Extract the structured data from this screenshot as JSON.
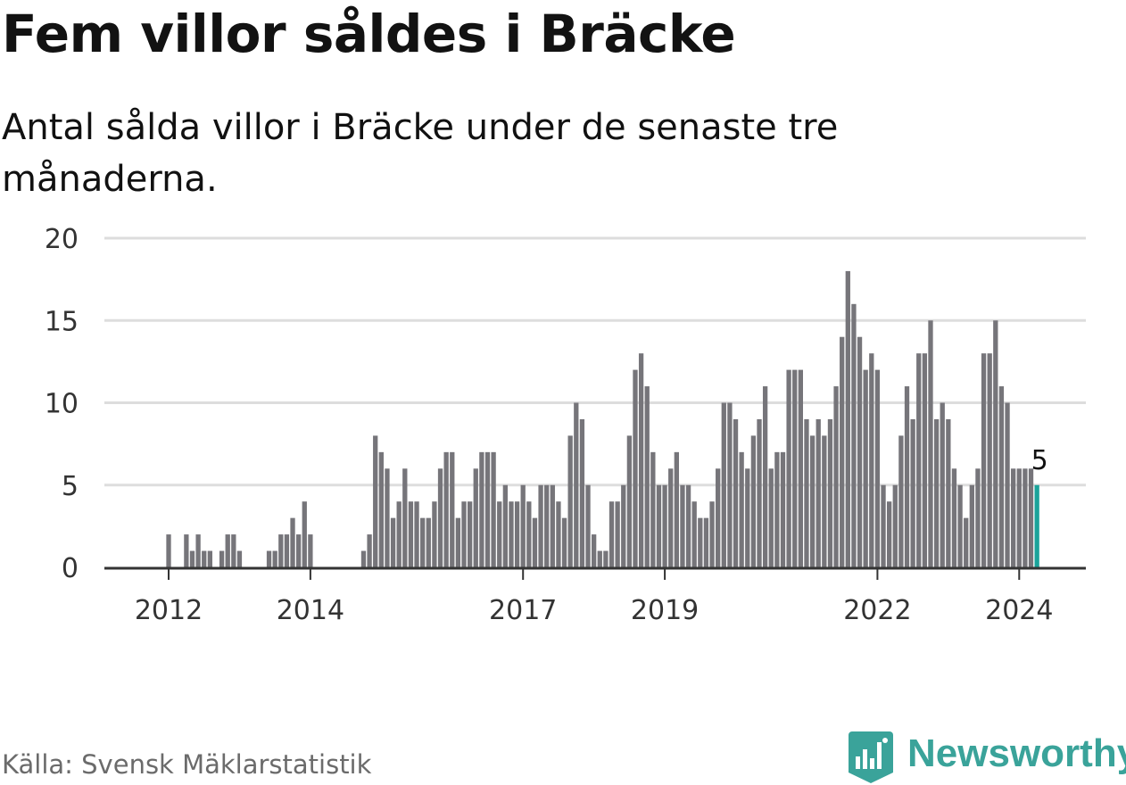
{
  "title": "Fem villor såldes i Bräcke",
  "subtitle": "Antal sålda villor i Bräcke under de senaste tre månaderna.",
  "source": "Källa: Svensk Mäklarstatistik",
  "brand": {
    "name": "Newsworthy",
    "icon": "newsworthy-logo-icon",
    "color": "#3aa39a"
  },
  "chart_data": {
    "type": "bar",
    "title": "Fem villor såldes i Bräcke",
    "xlabel": "",
    "ylabel": "",
    "ylim": [
      0,
      20
    ],
    "yticks": [
      0,
      5,
      10,
      15,
      20
    ],
    "grid": true,
    "bar_color": "#76757a",
    "highlight_color": "#1aa39a",
    "start_year": 2011,
    "start_month": 10,
    "xtick_labels": [
      {
        "label": "2012",
        "index": 3
      },
      {
        "label": "2014",
        "index": 27
      },
      {
        "label": "2017",
        "index": 63
      },
      {
        "label": "2019",
        "index": 87
      },
      {
        "label": "2022",
        "index": 123
      },
      {
        "label": "2024",
        "index": 147
      }
    ],
    "values": [
      0,
      0,
      0,
      2,
      0,
      0,
      2,
      1,
      2,
      1,
      1,
      0,
      1,
      2,
      2,
      1,
      0,
      0,
      0,
      0,
      1,
      1,
      2,
      2,
      3,
      2,
      4,
      2,
      0,
      0,
      0,
      0,
      0,
      0,
      0,
      0,
      1,
      2,
      8,
      7,
      6,
      3,
      4,
      6,
      4,
      4,
      3,
      3,
      4,
      6,
      7,
      7,
      3,
      4,
      4,
      6,
      7,
      7,
      7,
      4,
      5,
      4,
      4,
      5,
      4,
      3,
      5,
      5,
      5,
      4,
      3,
      8,
      10,
      9,
      5,
      2,
      1,
      1,
      4,
      4,
      5,
      8,
      12,
      13,
      11,
      7,
      5,
      5,
      6,
      7,
      5,
      5,
      4,
      3,
      3,
      4,
      6,
      10,
      10,
      9,
      7,
      6,
      8,
      9,
      11,
      6,
      7,
      7,
      12,
      12,
      12,
      9,
      8,
      9,
      8,
      9,
      11,
      14,
      18,
      16,
      14,
      12,
      13,
      12,
      5,
      4,
      5,
      8,
      11,
      9,
      13,
      13,
      15,
      9,
      10,
      9,
      6,
      5,
      3,
      5,
      6,
      13,
      13,
      15,
      11,
      10,
      6,
      6,
      6,
      6,
      5
    ],
    "highlight_index": 150,
    "annotation": {
      "index": 150,
      "text": "5"
    }
  }
}
